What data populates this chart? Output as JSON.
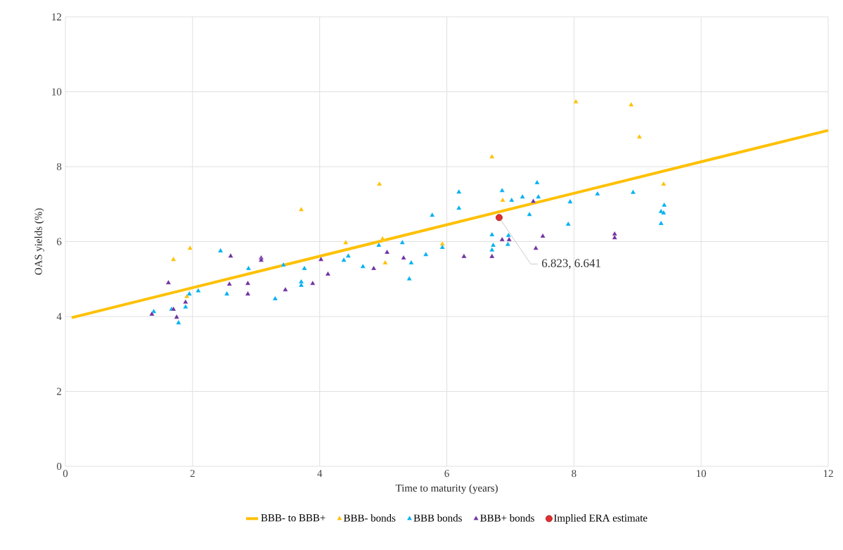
{
  "chart_data": {
    "type": "scatter",
    "xlabel": "Time to maturity (years)",
    "ylabel": "OAS yields (%)",
    "xlim": [
      0,
      12
    ],
    "ylim": [
      0,
      12
    ],
    "xticks": [
      0,
      2,
      4,
      6,
      8,
      10,
      12
    ],
    "yticks": [
      0,
      2,
      4,
      6,
      8,
      10,
      12
    ],
    "grid": true,
    "legend": "bottom",
    "series": [
      {
        "name": "BBB- to BBB+",
        "type": "line",
        "marker": "none",
        "color": "#ffc000",
        "x": [
          0.1,
          12
        ],
        "values": [
          3.97,
          8.97
        ]
      },
      {
        "name": "BBB- bonds",
        "marker": "triangle",
        "color": "#ffc000",
        "x": [
          1.7,
          1.96,
          1.91,
          3.71,
          4.41,
          4.94,
          4.99,
          5.03,
          5.93,
          6.71,
          6.88,
          8.03,
          8.9,
          9.03,
          9.41
        ],
        "values": [
          5.52,
          5.82,
          4.53,
          6.85,
          5.97,
          7.53,
          6.07,
          5.43,
          5.93,
          8.26,
          7.1,
          9.73,
          9.65,
          8.79,
          7.53
        ]
      },
      {
        "name": "BBB bonds",
        "marker": "triangle",
        "color": "#00b0f0",
        "x": [
          1.39,
          1.67,
          1.78,
          1.89,
          1.95,
          2.09,
          2.44,
          2.54,
          2.88,
          3.3,
          3.43,
          3.71,
          3.71,
          3.76,
          4.38,
          4.45,
          4.68,
          4.93,
          5.3,
          5.41,
          5.44,
          5.67,
          5.77,
          5.93,
          6.19,
          6.19,
          6.71,
          6.73,
          6.71,
          6.87,
          6.96,
          6.97,
          7.02,
          7.19,
          7.3,
          7.42,
          7.44,
          7.94,
          7.91,
          8.37,
          8.93,
          9.37,
          9.42,
          9.41,
          9.37
        ],
        "values": [
          4.13,
          4.19,
          3.83,
          4.25,
          4.6,
          4.68,
          5.75,
          4.6,
          5.28,
          4.47,
          5.37,
          4.92,
          4.83,
          5.28,
          5.5,
          5.61,
          5.33,
          5.9,
          5.97,
          5.0,
          5.43,
          5.65,
          6.7,
          5.84,
          6.89,
          7.32,
          6.18,
          5.9,
          5.77,
          7.36,
          5.92,
          6.16,
          7.1,
          7.19,
          6.72,
          7.57,
          7.19,
          7.06,
          6.46,
          7.27,
          7.31,
          6.8,
          6.97,
          6.76,
          6.48
        ]
      },
      {
        "name": "BBB+ bonds",
        "marker": "triangle",
        "color": "#7030a0",
        "x": [
          1.36,
          1.62,
          1.7,
          1.75,
          1.89,
          2.58,
          2.6,
          2.87,
          2.87,
          3.08,
          3.08,
          3.46,
          3.89,
          4.02,
          4.13,
          4.85,
          5.06,
          5.32,
          6.27,
          6.71,
          6.87,
          6.98,
          7.36,
          7.4,
          7.51,
          8.64,
          8.64
        ],
        "values": [
          4.06,
          4.9,
          4.19,
          3.98,
          4.38,
          4.86,
          5.61,
          4.88,
          4.6,
          5.56,
          5.5,
          4.71,
          4.88,
          5.52,
          5.13,
          5.28,
          5.71,
          5.56,
          5.6,
          5.6,
          6.05,
          6.05,
          7.07,
          5.82,
          6.14,
          6.2,
          6.1
        ]
      },
      {
        "name": "Implied ERA estimate",
        "marker": "circle",
        "color": "#e03030",
        "x": [
          6.823
        ],
        "values": [
          6.641
        ]
      }
    ],
    "annotations": [
      {
        "text": "6.823, 6.641",
        "x": 6.823,
        "y": 6.641
      }
    ]
  }
}
